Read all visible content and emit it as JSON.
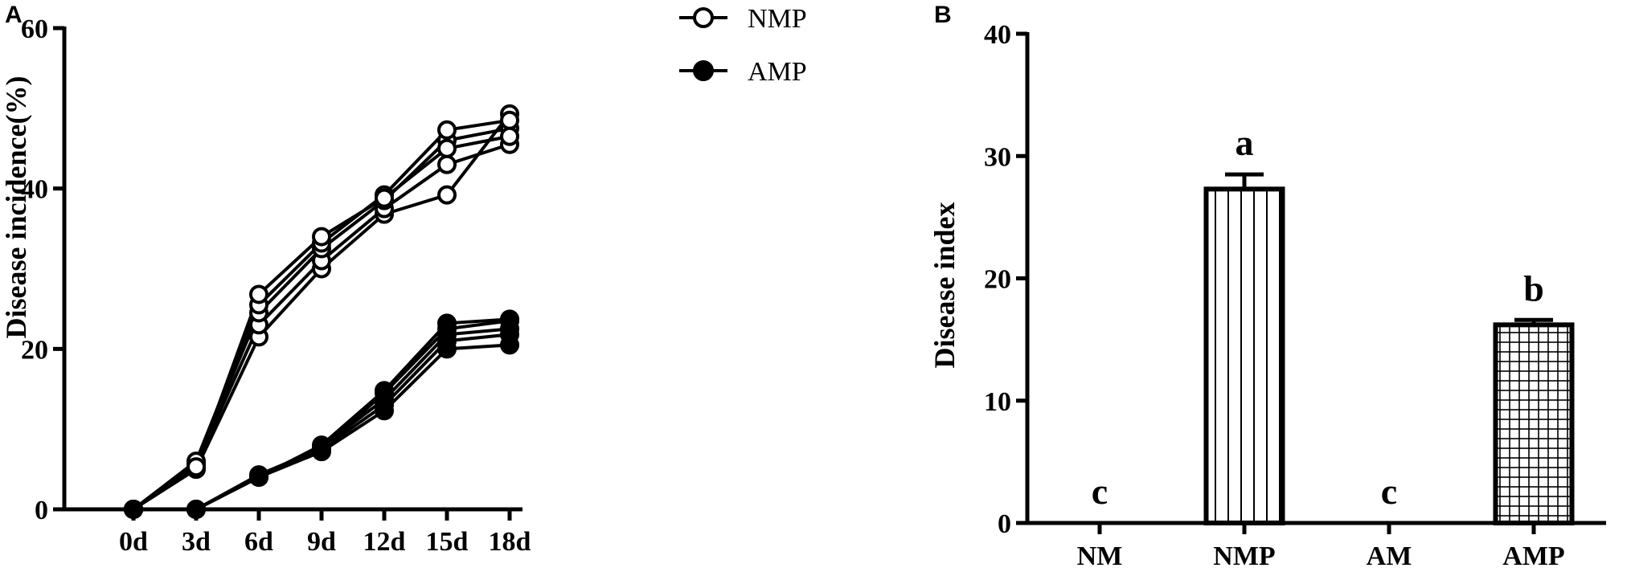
{
  "chart_data": [
    {
      "type": "line",
      "panel_label": "A",
      "ylabel": "Disease incidence(%)",
      "xlabel": "",
      "categories": [
        "0d",
        "3d",
        "6d",
        "9d",
        "12d",
        "15d",
        "18d"
      ],
      "ylim": [
        0,
        60
      ],
      "yticks": [
        "0",
        "20",
        "40",
        "60"
      ],
      "grid": false,
      "legend_position": "top",
      "legend": [
        {
          "label": "NMP",
          "marker": "open-circle"
        },
        {
          "label": "AMP",
          "marker": "filled-circle"
        }
      ],
      "series": [
        {
          "name": "NMP",
          "marker": "open-circle",
          "values": [
            0,
            5,
            21.5,
            30,
            36.8,
            39.2,
            49.3
          ]
        },
        {
          "name": "NMP",
          "marker": "open-circle",
          "values": [
            0,
            5.6,
            23,
            31,
            37.5,
            43,
            45.5
          ]
        },
        {
          "name": "NMP",
          "marker": "open-circle",
          "values": [
            0,
            5.9,
            24.5,
            32.5,
            38.5,
            46,
            47.5
          ]
        },
        {
          "name": "NMP",
          "marker": "open-circle",
          "values": [
            0,
            6,
            25.5,
            33.2,
            39.2,
            47.3,
            48.5
          ]
        },
        {
          "name": "NMP",
          "marker": "open-circle",
          "values": [
            0,
            5.3,
            26.8,
            34,
            38.8,
            45,
            46.5
          ]
        },
        {
          "name": "AMP",
          "marker": "filled-circle",
          "values": [
            0,
            0,
            4,
            7.2,
            12.3,
            20,
            20.5
          ]
        },
        {
          "name": "AMP",
          "marker": "filled-circle",
          "values": [
            0,
            0,
            4.2,
            7.5,
            13,
            21,
            21.8
          ]
        },
        {
          "name": "AMP",
          "marker": "filled-circle",
          "values": [
            0,
            0,
            4.1,
            7.8,
            13.7,
            21.8,
            22.5
          ]
        },
        {
          "name": "AMP",
          "marker": "filled-circle",
          "values": [
            0,
            0,
            4.3,
            7.6,
            14.5,
            22.5,
            23.5
          ]
        },
        {
          "name": "AMP",
          "marker": "filled-circle",
          "values": [
            0,
            0,
            4,
            8,
            14.8,
            23.2,
            23.7
          ]
        }
      ]
    },
    {
      "type": "bar",
      "panel_label": "B",
      "ylabel": "Disease index",
      "xlabel": "",
      "categories": [
        "NM",
        "NMP",
        "AM",
        "AMP"
      ],
      "values": [
        0,
        27.3,
        0,
        16.2
      ],
      "errors": [
        0,
        1.2,
        0,
        0.4
      ],
      "significance_letters": [
        "c",
        "a",
        "c",
        "b"
      ],
      "bar_patterns": [
        "none",
        "vertical-lines",
        "none",
        "grid"
      ],
      "ylim": [
        0,
        40
      ],
      "yticks": [
        "0",
        "10",
        "20",
        "30",
        "40"
      ],
      "grid": false
    }
  ]
}
